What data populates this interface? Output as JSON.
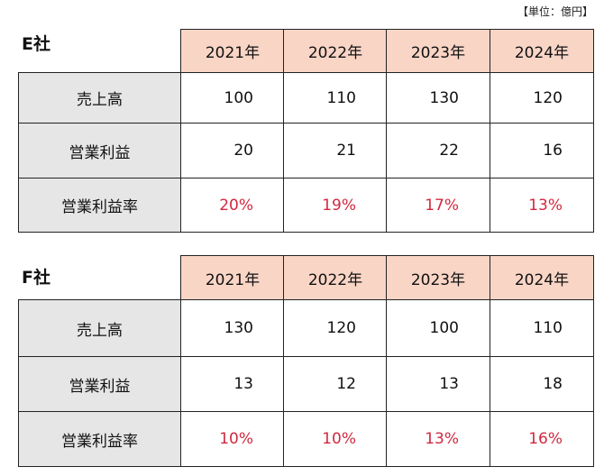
{
  "unit": "【単位：億円】",
  "tables": [
    {
      "title": "E社",
      "header": [
        "2021年",
        "2022年",
        "2023年",
        "2024年"
      ],
      "rows": [
        {
          "label": "売上高",
          "cells": [
            "100",
            "110",
            "130",
            "120"
          ]
        },
        {
          "label": "営業利益",
          "cells": [
            "20",
            "21",
            "22",
            "16"
          ]
        },
        {
          "label": "営業利益率",
          "cells": [
            "20%",
            "19%",
            "17%",
            "13%"
          ]
        }
      ]
    },
    {
      "title": "F社",
      "header": [
        "2021年",
        "2022年",
        "2023年",
        "2024年"
      ],
      "rows": [
        {
          "label": "売上高",
          "cells": [
            "130",
            "120",
            "100",
            "110"
          ]
        },
        {
          "label": "営業利益",
          "cells": [
            "13",
            "12",
            "13",
            "18"
          ]
        },
        {
          "label": "営業利益率",
          "cells": [
            "10%",
            "10%",
            "13%",
            "16%"
          ]
        }
      ]
    }
  ]
}
